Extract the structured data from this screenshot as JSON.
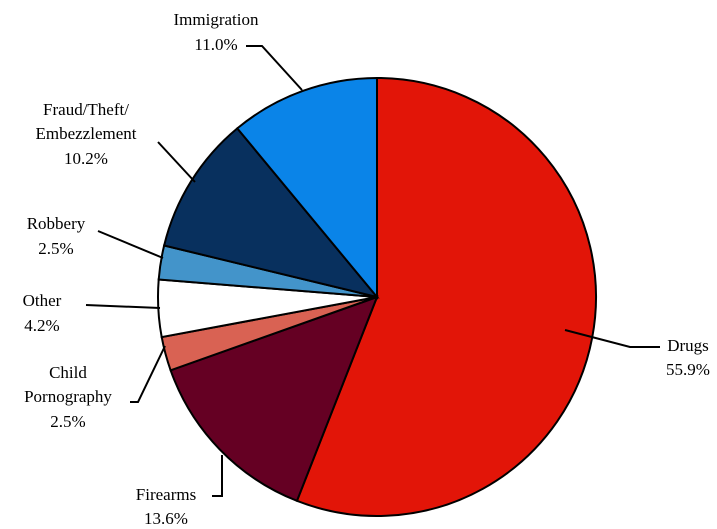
{
  "chart_data": {
    "type": "pie",
    "title": "",
    "slices": [
      {
        "label": "Drugs",
        "value": 55.9,
        "value_label": "55.9%",
        "color": "#E21508"
      },
      {
        "label": "Firearms",
        "value": 13.6,
        "value_label": "13.6%",
        "color": "#650023"
      },
      {
        "label": "Child Pornography",
        "value": 2.5,
        "value_label": "2.5%",
        "color": "#D96253"
      },
      {
        "label": "Other",
        "value": 4.2,
        "value_label": "4.2%",
        "color": "#FFFFFF"
      },
      {
        "label": "Robbery",
        "value": 2.5,
        "value_label": "2.5%",
        "color": "#4394CA"
      },
      {
        "label": "Fraud/Theft/ Embezzlement",
        "value": 10.2,
        "value_label": "10.2%",
        "color": "#08305E"
      },
      {
        "label": "Immigration",
        "value": 11.0,
        "value_label": "11.0%",
        "color": "#0A84E8"
      }
    ]
  }
}
